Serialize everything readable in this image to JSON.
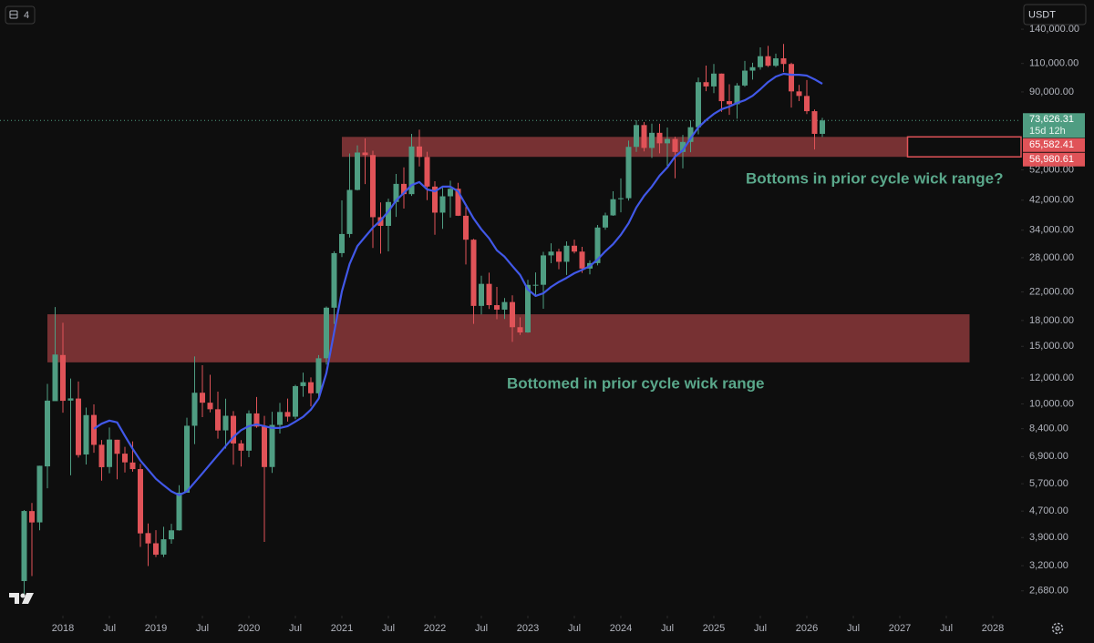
{
  "toolbar": {
    "interval": "4",
    "currency": "USDT"
  },
  "chart_data": {
    "type": "candlestick",
    "log_scale": true,
    "grid": false,
    "up_color": "#4f9d82",
    "down_color": "#e05358",
    "categories": [
      "2017-08",
      "2017-09",
      "2017-10",
      "2017-11",
      "2017-12",
      "2018-01",
      "2018-02",
      "2018-03",
      "2018-04",
      "2018-05",
      "2018-06",
      "2018-07",
      "2018-08",
      "2018-09",
      "2018-10",
      "2018-11",
      "2018-12",
      "2019-01",
      "2019-02",
      "2019-03",
      "2019-04",
      "2019-05",
      "2019-06",
      "2019-07",
      "2019-08",
      "2019-09",
      "2019-10",
      "2019-11",
      "2019-12",
      "2020-01",
      "2020-02",
      "2020-03",
      "2020-04",
      "2020-05",
      "2020-06",
      "2020-07",
      "2020-08",
      "2020-09",
      "2020-10",
      "2020-11",
      "2020-12",
      "2021-01",
      "2021-02",
      "2021-03",
      "2021-04",
      "2021-05",
      "2021-06",
      "2021-07",
      "2021-08",
      "2021-09",
      "2021-10",
      "2021-11",
      "2021-12",
      "2022-01",
      "2022-02",
      "2022-03",
      "2022-04",
      "2022-05",
      "2022-06",
      "2022-07",
      "2022-08",
      "2022-09",
      "2022-10",
      "2022-11",
      "2022-12",
      "2023-01",
      "2023-02",
      "2023-03",
      "2023-04",
      "2023-05",
      "2023-06",
      "2023-07",
      "2023-08",
      "2023-09",
      "2023-10",
      "2023-11",
      "2023-12",
      "2024-01",
      "2024-02",
      "2024-03",
      "2024-04",
      "2024-05",
      "2024-06",
      "2024-07",
      "2024-08",
      "2024-09",
      "2024-10",
      "2024-11",
      "2024-12",
      "2025-01",
      "2025-02",
      "2025-03",
      "2025-04",
      "2025-05",
      "2025-06",
      "2025-07",
      "2025-08",
      "2025-09",
      "2025-10",
      "2025-11",
      "2025-12",
      "2026-01",
      "2026-02",
      "2026-03"
    ],
    "open": [
      2871,
      4701,
      4341,
      6440,
      10198,
      14112,
      10237,
      10385,
      7003,
      9251,
      7500,
      6411,
      7769,
      7044,
      6619,
      6318,
      4025,
      3747,
      3460,
      3853,
      4105,
      5351,
      8574,
      10818,
      10085,
      9630,
      8299,
      9193,
      7571,
      7194,
      9351,
      8523,
      6412,
      8624,
      9446,
      9138,
      11335,
      11649,
      10776,
      13791,
      19695,
      28923,
      33092,
      45135,
      58740,
      57697,
      37253,
      35045,
      41461,
      47101,
      43820,
      61300,
      56950,
      46216,
      38466,
      43160,
      45510,
      37630,
      31792,
      19942,
      23293,
      20050,
      19423,
      20490,
      17165,
      16542,
      23125,
      23141,
      28465,
      29233,
      27210,
      30472,
      29232,
      25941,
      26962,
      34639,
      37723,
      42284,
      42582,
      61130,
      71280,
      60672,
      67491,
      62678,
      64628,
      58974,
      63301,
      70216,
      96407,
      93576,
      102429,
      84350,
      82548,
      94172,
      104591,
      107147,
      115764,
      108236,
      114049,
      109608,
      90360,
      87500,
      78600,
      67000
    ],
    "high": [
      4736,
      4975,
      6470,
      11517,
      19783,
      17712,
      11958,
      11710,
      9745,
      9964,
      7754,
      8468,
      7769,
      7388,
      7680,
      6553,
      4309,
      4109,
      4210,
      4296,
      5642,
      9074,
      13970,
      13130,
      12274,
      10905,
      10370,
      9505,
      7750,
      9553,
      10500,
      9189,
      9460,
      10067,
      10380,
      11444,
      12468,
      12050,
      14100,
      19863,
      29300,
      41950,
      58352,
      61781,
      64854,
      59500,
      41330,
      42448,
      50500,
      52920,
      67000,
      69000,
      59053,
      47990,
      45821,
      48190,
      47444,
      40023,
      31980,
      24668,
      25211,
      22799,
      21085,
      21480,
      18387,
      23960,
      25250,
      29190,
      31000,
      29820,
      31431,
      31804,
      30244,
      27483,
      35280,
      38450,
      44729,
      48969,
      63913,
      73777,
      72797,
      71980,
      71950,
      70080,
      65660,
      66500,
      73620,
      99588,
      108353,
      109588,
      102500,
      95000,
      95758,
      111980,
      110530,
      123218,
      124474,
      117900,
      126199,
      110600,
      94600,
      97900,
      79500,
      75000
    ],
    "low": [
      2580,
      2975,
      4107,
      5519,
      10834,
      9402,
      6048,
      6854,
      6526,
      7090,
      5826,
      6133,
      5880,
      6170,
      6205,
      3653,
      3191,
      3401,
      3400,
      3734,
      4097,
      5351,
      7533,
      9110,
      9421,
      7830,
      7300,
      6515,
      6435,
      6871,
      8450,
      3782,
      6150,
      8117,
      8833,
      8977,
      10518,
      9825,
      10416,
      13195,
      17572,
      28130,
      32296,
      44950,
      47044,
      30000,
      28805,
      29278,
      37332,
      39600,
      43283,
      53256,
      42000,
      32917,
      34322,
      37155,
      37578,
      26700,
      17567,
      18781,
      19520,
      18153,
      18190,
      15476,
      16256,
      16500,
      21351,
      19549,
      26942,
      25811,
      24800,
      28861,
      25166,
      24901,
      26538,
      34097,
      37615,
      38555,
      41884,
      59005,
      59191,
      56552,
      58402,
      53485,
      49000,
      52550,
      58895,
      66790,
      90500,
      89256,
      78258,
      76606,
      74508,
      93346,
      98200,
      105271,
      107350,
      107255,
      103528,
      80600,
      84400,
      77000,
      60000,
      65500
    ],
    "close": [
      4703,
      4339,
      6468,
      10233,
      14157,
      10221,
      10397,
      6973,
      9240,
      7494,
      6404,
      7780,
      7037,
      6625,
      6318,
      4017,
      3743,
      3457,
      3854,
      4105,
      5351,
      8574,
      10818,
      10085,
      9630,
      8293,
      9199,
      7569,
      7193,
      9351,
      8523,
      6410,
      8624,
      9446,
      9138,
      11335,
      11649,
      10776,
      13791,
      19695,
      28923,
      33092,
      45135,
      58740,
      57694,
      37253,
      35045,
      41461,
      47101,
      43824,
      61300,
      56950,
      46216,
      38466,
      43160,
      45510,
      37630,
      31792,
      19942,
      23293,
      20050,
      19423,
      20490,
      17164,
      16542,
      23125,
      23141,
      28465,
      29233,
      27210,
      30472,
      29232,
      25941,
      26962,
      34639,
      37723,
      42284,
      42582,
      61130,
      71280,
      60672,
      67491,
      62678,
      64628,
      58974,
      63301,
      70216,
      96407,
      93576,
      102429,
      84350,
      82548,
      94172,
      104591,
      107147,
      115764,
      108236,
      114049,
      109608,
      90360,
      87500,
      78600,
      67000,
      73626.31
    ],
    "moving_average": {
      "color": "#4158e8",
      "values": [
        null,
        null,
        null,
        null,
        null,
        null,
        null,
        null,
        null,
        8390,
        8700,
        8890,
        8780,
        7980,
        7290,
        6710,
        6290,
        5900,
        5640,
        5400,
        5260,
        5400,
        5750,
        6130,
        6540,
        6970,
        7430,
        7920,
        8310,
        8550,
        8660,
        8550,
        8440,
        8440,
        8550,
        8830,
        9130,
        9600,
        10370,
        12420,
        16550,
        22100,
        26800,
        30400,
        32450,
        34600,
        36400,
        38800,
        41900,
        44200,
        46700,
        47700,
        45300,
        44700,
        46200,
        46200,
        44700,
        40600,
        36900,
        34200,
        32100,
        29500,
        28200,
        26400,
        24800,
        22400,
        21400,
        21800,
        22800,
        23600,
        24300,
        25100,
        25700,
        26400,
        27650,
        29300,
        30800,
        32900,
        35700,
        39900,
        43300,
        46200,
        49900,
        52900,
        57100,
        59700,
        64900,
        70100,
        73800,
        77100,
        79700,
        81200,
        83300,
        84900,
        87600,
        91700,
        96500,
        100300,
        102300,
        101600,
        101600,
        101000,
        98400,
        95300
      ]
    },
    "zones": [
      {
        "high": {
          "value": 65582.41,
          "label": "65,582.41"
        },
        "low": {
          "value": 56980.61,
          "label": "56,980.61"
        },
        "start": "2021-01",
        "end": "2027-02",
        "extended": true,
        "color": "#e05358"
      },
      {
        "high": 18800,
        "low": 13400,
        "start": "2017-11",
        "end": "2027-10",
        "extended": false,
        "color": "#e05358"
      }
    ],
    "annotations": [
      "Bottoms in prior cycle wick range?",
      "Bottomed in prior cycle wick range"
    ],
    "annotation_color": "#5aa88b",
    "current_price": {
      "value": 73626.31,
      "label": "73,626.31"
    },
    "countdown": "15d 12h",
    "ylim": [
      2250,
      172000
    ],
    "yticks": [
      {
        "value": 140000,
        "label": "140,000.00"
      },
      {
        "value": 110000,
        "label": "110,000.00"
      },
      {
        "value": 90000,
        "label": "90,000.00"
      },
      {
        "value": 52000,
        "label": "52,000.00"
      },
      {
        "value": 42000,
        "label": "42,000.00"
      },
      {
        "value": 34000,
        "label": "34,000.00"
      },
      {
        "value": 28000,
        "label": "28,000.00"
      },
      {
        "value": 22000,
        "label": "22,000.00"
      },
      {
        "value": 18000,
        "label": "18,000.00"
      },
      {
        "value": 15000,
        "label": "15,000.00"
      },
      {
        "value": 12000,
        "label": "12,000.00"
      },
      {
        "value": 10000,
        "label": "10,000.00"
      },
      {
        "value": 8400,
        "label": "8,400.00"
      },
      {
        "value": 6900,
        "label": "6,900.00"
      },
      {
        "value": 5700,
        "label": "5,700.00"
      },
      {
        "value": 4700,
        "label": "4,700.00"
      },
      {
        "value": 3900,
        "label": "3,900.00"
      },
      {
        "value": 3200,
        "label": "3,200.00"
      },
      {
        "value": 2680,
        "label": "2,680.00"
      }
    ],
    "xticks": [
      {
        "value": "2018-01",
        "label": "2018"
      },
      {
        "value": "2018-07",
        "label": "Jul"
      },
      {
        "value": "2019-01",
        "label": "2019"
      },
      {
        "value": "2019-07",
        "label": "Jul"
      },
      {
        "value": "2020-01",
        "label": "2020"
      },
      {
        "value": "2020-07",
        "label": "Jul"
      },
      {
        "value": "2021-01",
        "label": "2021"
      },
      {
        "value": "2021-07",
        "label": "Jul"
      },
      {
        "value": "2022-01",
        "label": "2022"
      },
      {
        "value": "2022-07",
        "label": "Jul"
      },
      {
        "value": "2023-01",
        "label": "2023"
      },
      {
        "value": "2023-07",
        "label": "Jul"
      },
      {
        "value": "2024-01",
        "label": "2024"
      },
      {
        "value": "2024-07",
        "label": "Jul"
      },
      {
        "value": "2025-01",
        "label": "2025"
      },
      {
        "value": "2025-07",
        "label": "Jul"
      },
      {
        "value": "2026-01",
        "label": "2026"
      },
      {
        "value": "2026-07",
        "label": "Jul"
      },
      {
        "value": "2027-01",
        "label": "2027"
      },
      {
        "value": "2027-07",
        "label": "Jul"
      },
      {
        "value": "2028-01",
        "label": "2028"
      }
    ]
  }
}
